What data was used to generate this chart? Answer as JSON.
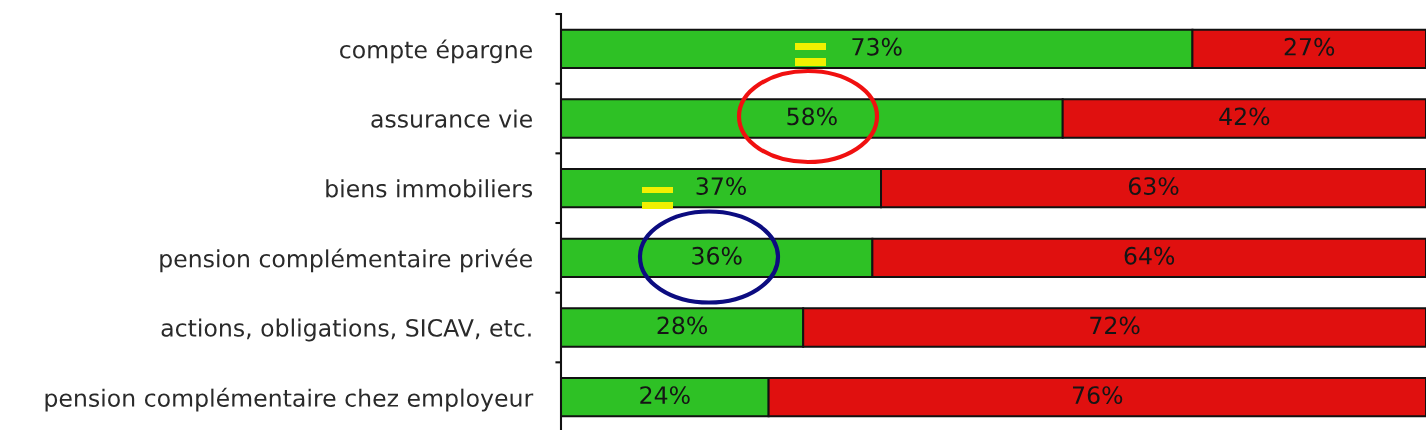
{
  "chart_data": {
    "type": "bar",
    "orientation": "horizontal",
    "stacked": true,
    "categories": [
      "compte épargne",
      "assurance vie",
      "biens immobiliers",
      "pension complémentaire privée",
      "actions, obligations, SICAV, etc.",
      "pension complémentaire chez employeur"
    ],
    "series": [
      {
        "color": "#2ec125",
        "values": [
          73,
          58,
          37,
          36,
          28,
          24
        ],
        "value_labels": [
          "73%",
          "58%",
          "37%",
          "36%",
          "28%",
          "24%"
        ]
      },
      {
        "color": "#e0100f",
        "values": [
          27,
          42,
          63,
          64,
          72,
          76
        ],
        "value_labels": [
          "27%",
          "42%",
          "63%",
          "64%",
          "72%",
          "76%"
        ]
      }
    ],
    "xlim": [
      0,
      100
    ],
    "tick_labels": "y"
  }
}
